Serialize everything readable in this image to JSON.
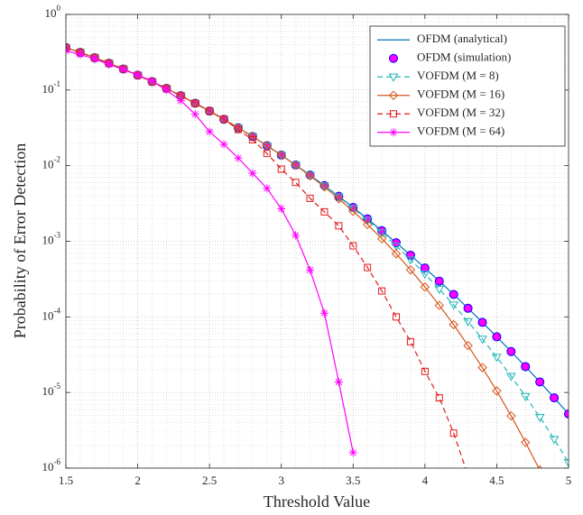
{
  "chart_data": {
    "type": "line",
    "x_label": "Threshold Value",
    "y_label": "Probability of Error Detection",
    "log_y": true,
    "grid": true,
    "minor_grid": true,
    "legend_position": "upper right",
    "xlim": [
      1.5,
      5
    ],
    "xticks": [
      1.5,
      2,
      2.5,
      3,
      3.5,
      4,
      4.5,
      5
    ],
    "ylim": [
      1e-06,
      1
    ],
    "yticks": [
      {
        "value": 1e-06,
        "label": "10^-6"
      },
      {
        "value": 1e-05,
        "label": "10^-5"
      },
      {
        "value": 0.0001,
        "label": "10^-4"
      },
      {
        "value": 0.001,
        "label": "10^-3"
      },
      {
        "value": 0.01,
        "label": "10^-2"
      },
      {
        "value": 0.1,
        "label": "10^-1"
      },
      {
        "value": 1,
        "label": "10^0"
      }
    ],
    "x": [
      1.5,
      1.6,
      1.7,
      1.8,
      1.9,
      2.0,
      2.1,
      2.2,
      2.3,
      2.4,
      2.5,
      2.6,
      2.7,
      2.8,
      2.9,
      3.0,
      3.1,
      3.2,
      3.3,
      3.4,
      3.5,
      3.6,
      3.7,
      3.8,
      3.9,
      4.0,
      4.1,
      4.2,
      4.3,
      4.4,
      4.5,
      4.6,
      4.7,
      4.8,
      4.9,
      5.0
    ],
    "series": [
      {
        "name": "OFDM (analytical)",
        "color": "#0072bd",
        "marker": "none",
        "dash": "solid",
        "values": [
          0.364,
          0.314,
          0.268,
          0.226,
          0.19,
          0.157,
          0.129,
          0.105,
          0.0841,
          0.0669,
          0.0527,
          0.0411,
          0.0317,
          0.0243,
          0.0184,
          0.0138,
          0.0102,
          0.00751,
          0.00546,
          0.00393,
          0.0028,
          0.00198,
          0.00138,
          0.000955,
          0.000654,
          0.000443,
          0.000297,
          0.000198,
          0.00013,
          8.46e-05,
          5.45e-05,
          3.48e-05,
          2.2e-05,
          1.38e-05,
          8.5e-06,
          5.2e-06
        ]
      },
      {
        "name": "OFDM (simulation)",
        "color": "#0000ff",
        "fill": "#ff00ff",
        "marker": "circle",
        "dash": "none",
        "values": [
          0.364,
          0.314,
          0.268,
          0.226,
          0.19,
          0.157,
          0.129,
          0.105,
          0.0841,
          0.0669,
          0.0527,
          0.0411,
          0.0317,
          0.0243,
          0.0184,
          0.0138,
          0.0102,
          0.00751,
          0.00546,
          0.00393,
          0.0028,
          0.00198,
          0.00138,
          0.000955,
          0.000654,
          0.000443,
          0.000297,
          0.000198,
          0.00013,
          8.46e-05,
          5.45e-05,
          3.48e-05,
          2.2e-05,
          1.38e-05,
          8.5e-06,
          5.2e-06
        ]
      },
      {
        "name": "VOFDM (M = 8)",
        "color": "#1fb7b7",
        "marker": "triangle-down",
        "dash": "dashed",
        "values": [
          0.364,
          0.314,
          0.268,
          0.226,
          0.19,
          0.157,
          0.129,
          0.105,
          0.0841,
          0.0669,
          0.0527,
          0.0411,
          0.0317,
          0.0243,
          0.0184,
          0.0138,
          0.0102,
          0.0075,
          0.00543,
          0.00388,
          0.00274,
          0.0019,
          0.0013,
          0.000869,
          0.000572,
          0.000369,
          0.000233,
          0.000144,
          8.67e-05,
          5.1e-05,
          2.93e-05,
          1.64e-05,
          8.9e-06,
          4.72e-06,
          2.41e-06,
          1.19e-06
        ]
      },
      {
        "name": "VOFDM (M = 16)",
        "color": "#d95319",
        "marker": "diamond",
        "dash": "solid",
        "values": [
          0.364,
          0.314,
          0.268,
          0.226,
          0.19,
          0.157,
          0.129,
          0.105,
          0.0841,
          0.0669,
          0.0527,
          0.0411,
          0.0317,
          0.0243,
          0.0184,
          0.0138,
          0.0101,
          0.00735,
          0.00524,
          0.00365,
          0.00249,
          0.00167,
          0.00108,
          0.000683,
          0.000418,
          0.000248,
          0.000142,
          7.88e-05,
          4.17e-05,
          2.13e-05,
          1.05e-05,
          4.91e-06,
          2.19e-06,
          9.4e-07,
          null,
          null
        ]
      },
      {
        "name": "VOFDM (M = 32)",
        "color": "#e31a1c",
        "marker": "square",
        "dash": "dashed",
        "values": [
          0.364,
          0.314,
          0.268,
          0.226,
          0.19,
          0.157,
          0.129,
          0.105,
          0.0841,
          0.0669,
          0.0527,
          0.0411,
          0.03,
          0.022,
          0.0145,
          0.009,
          0.006,
          0.0037,
          0.00245,
          0.0016,
          0.00087,
          0.00045,
          0.00022,
          0.0001,
          4.7e-05,
          1.9e-05,
          8.5e-06,
          2.9e-06,
          8e-07,
          null,
          null,
          null,
          null,
          null,
          null,
          null
        ]
      },
      {
        "name": "VOFDM (M = 64)",
        "color": "#ff00ff",
        "marker": "asterisk",
        "dash": "solid",
        "values": [
          0.33,
          0.295,
          0.257,
          0.219,
          0.186,
          0.158,
          0.132,
          0.1,
          0.0724,
          0.0479,
          0.0282,
          0.0191,
          0.0126,
          0.00794,
          0.00501,
          0.00269,
          0.0012,
          0.000417,
          0.000112,
          1.38e-05,
          1.6e-06,
          null,
          null,
          null,
          null,
          null,
          null,
          null,
          null,
          null,
          null,
          null,
          null,
          null,
          null,
          null
        ]
      }
    ]
  }
}
